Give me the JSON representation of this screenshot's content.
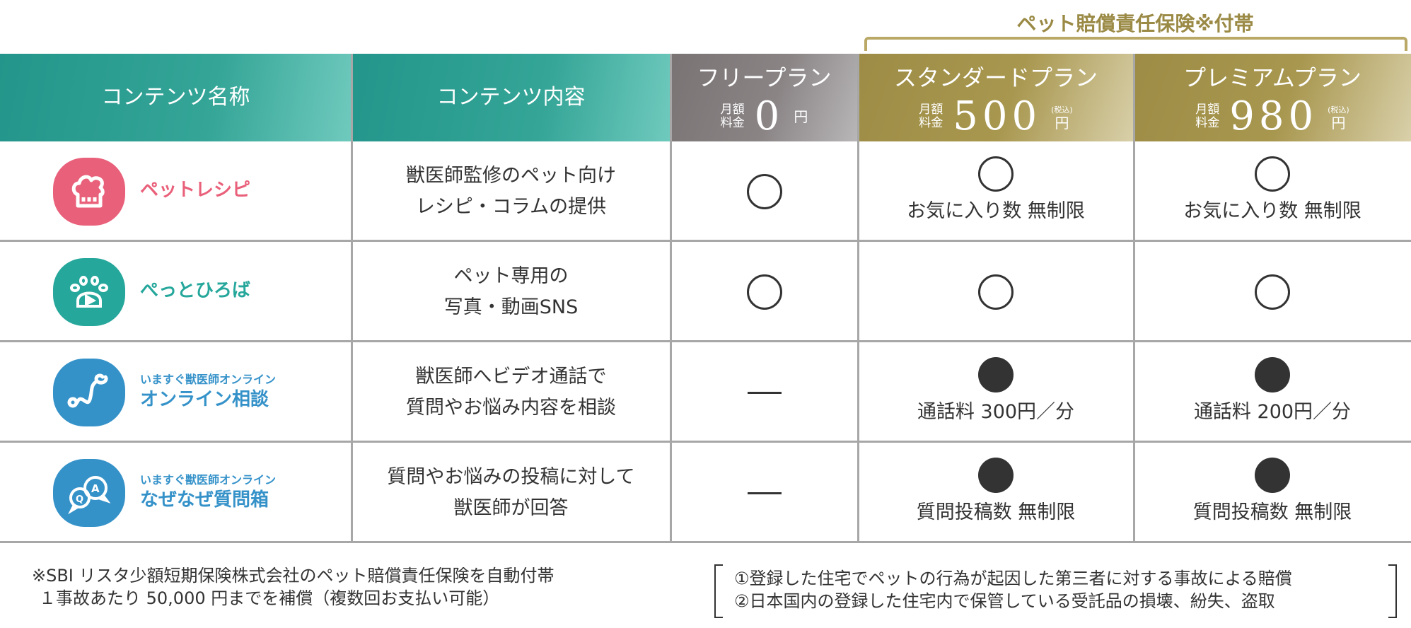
{
  "insurance_banner": "ペット賠償責任保険※付帯",
  "header": {
    "content_name": "コンテンツ名称",
    "content_detail": "コンテンツ内容",
    "plans": [
      {
        "name": "フリープラン",
        "price_label_1": "月額",
        "price_label_2": "料金",
        "price": "0",
        "unit": "円",
        "tax": ""
      },
      {
        "name": "スタンダードプラン",
        "price_label_1": "月額",
        "price_label_2": "料金",
        "price": "500",
        "unit": "円",
        "tax": "(税込)"
      },
      {
        "name": "プレミアムプラン",
        "price_label_1": "月額",
        "price_label_2": "料金",
        "price": "980",
        "unit": "円",
        "tax": "(税込)"
      }
    ]
  },
  "rows": [
    {
      "sub": "",
      "name": "ペットレシピ",
      "icon": "chef-hat-icon",
      "color": "#e9607a",
      "desc1": "獣医師監修のペット向け",
      "desc2": "レシピ・コラムの提供",
      "free": "circle",
      "std": "circle",
      "std_note": "お気に入り数 無制限",
      "prem": "circle",
      "prem_note": "お気に入り数 無制限"
    },
    {
      "sub": "",
      "name": "ぺっとひろば",
      "icon": "paw-play-icon",
      "color": "#26a79b",
      "desc1": "ペット専用の",
      "desc2": "写真・動画SNS",
      "free": "circle",
      "std": "circle",
      "std_note": "",
      "prem": "circle",
      "prem_note": ""
    },
    {
      "sub": "いますぐ獣医師オンライン",
      "name": "オンライン相談",
      "icon": "stethoscope-icon",
      "color": "#3592c9",
      "desc1": "獣医師へビデオ通話で",
      "desc2": "質問やお悩み内容を相談",
      "free": "dash",
      "std": "dot",
      "std_note": "通話料 300円／分",
      "prem": "dot",
      "prem_note": "通話料 200円／分"
    },
    {
      "sub": "いますぐ獣医師オンライン",
      "name": "なぜなぜ質問箱",
      "icon": "qa-bubbles-icon",
      "color": "#3592c9",
      "desc1": "質問やお悩みの投稿に対して",
      "desc2": "獣医師が回答",
      "free": "dash",
      "std": "dot",
      "std_note": "質問投稿数 無制限",
      "prem": "dot",
      "prem_note": "質問投稿数 無制限"
    }
  ],
  "footer": {
    "left1": "※SBI リスタ少額短期保険株式会社のペット賠償責任保険を自動付帯",
    "left2": "１事故あたり 50,000 円までを補償（複数回お支払い可能）",
    "right1": "①登録した住宅でペットの行為が起因した第三者に対する事故による賠償",
    "right2": "②日本国内の登録した住宅内で保管している受託品の損壊、紛失、盗取"
  }
}
